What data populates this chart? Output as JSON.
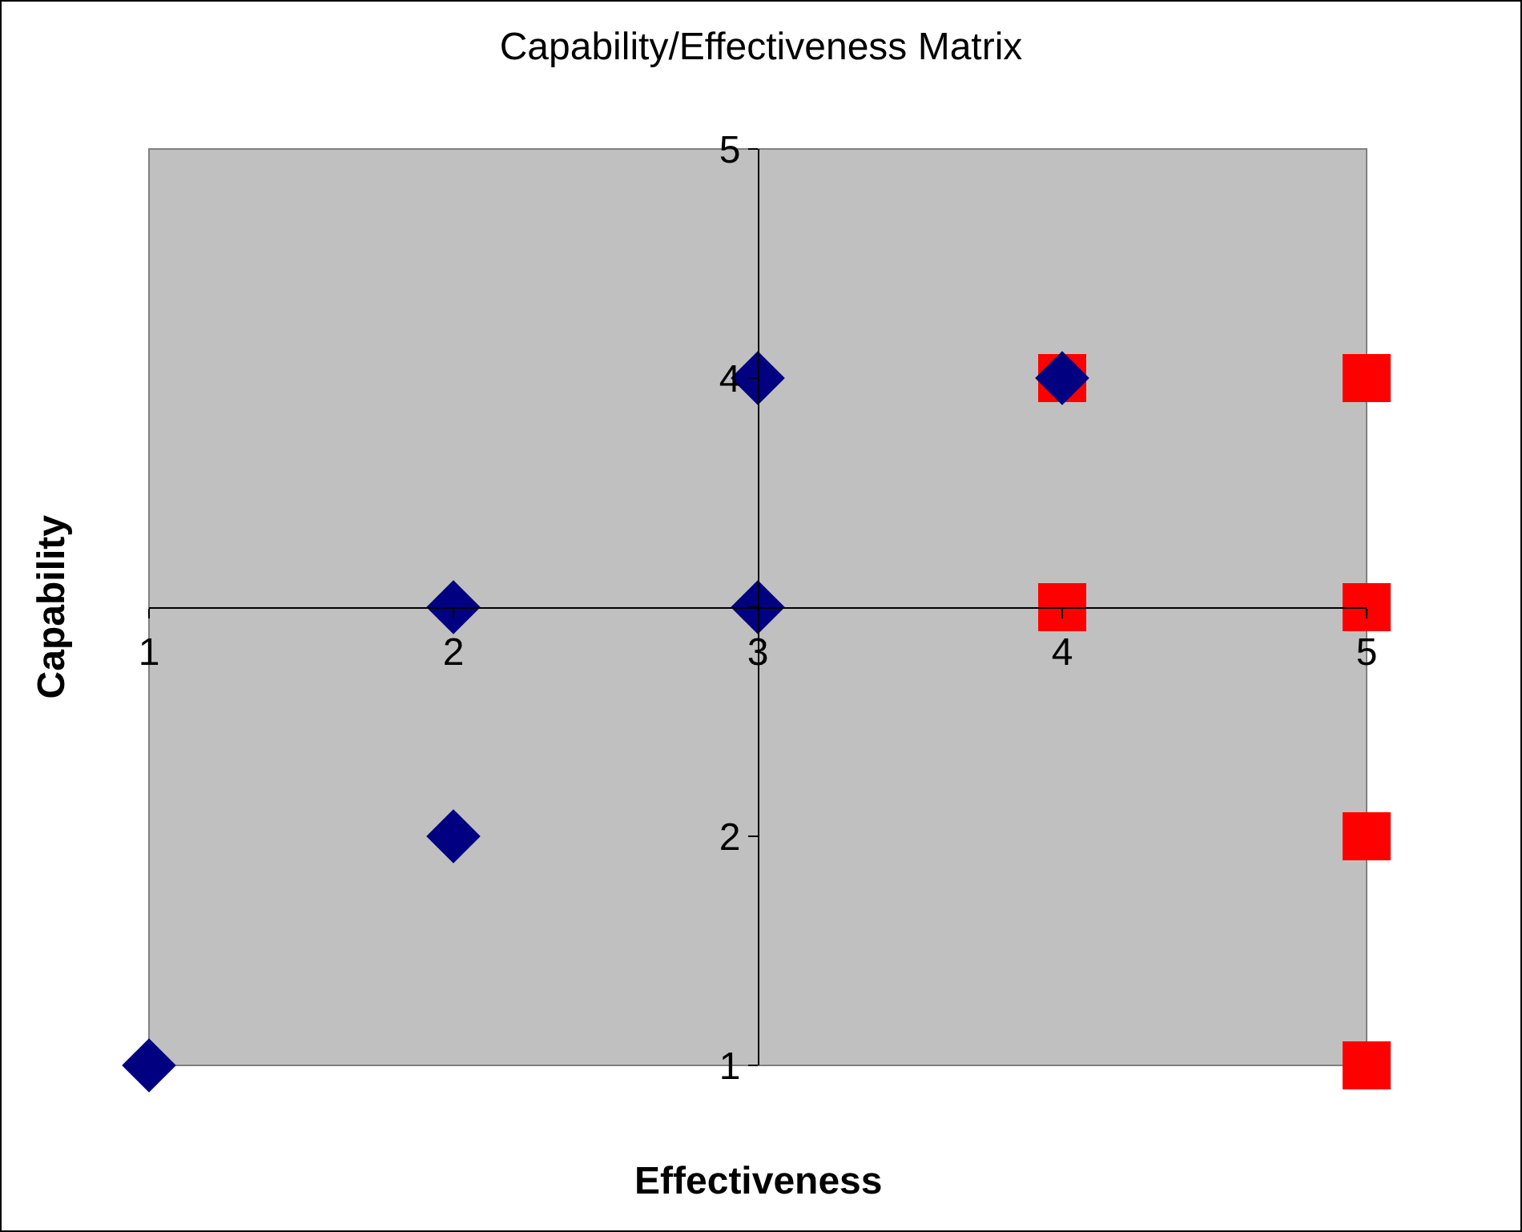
{
  "chart_data": {
    "type": "scatter",
    "title": "Capability/Effectiveness Matrix",
    "xlabel": "Effectiveness",
    "ylabel": "Capability",
    "xlim": [
      1,
      5
    ],
    "ylim": [
      1,
      5
    ],
    "xticks": [
      1,
      2,
      3,
      4,
      5
    ],
    "yticks": [
      1,
      2,
      {
        "value": 3,
        "label": null
      },
      4,
      5
    ],
    "series": [
      {
        "color": "#ff0000",
        "marker": "square",
        "x": [
          4,
          4,
          5,
          5,
          5,
          5
        ],
        "values": [
          3,
          4,
          4,
          3,
          2,
          1
        ]
      },
      {
        "color": "#000080",
        "marker": "diamond",
        "x": [
          1,
          2,
          2,
          3,
          3,
          4
        ],
        "values": [
          1,
          2,
          3,
          3,
          4,
          4
        ]
      }
    ]
  }
}
